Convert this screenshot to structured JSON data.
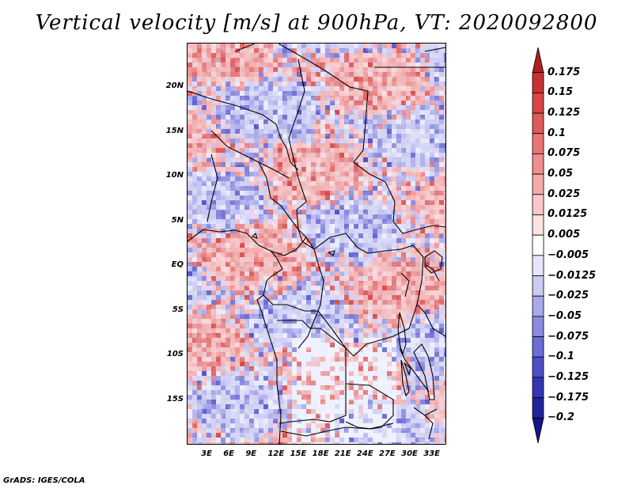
{
  "title": "Vertical velocity [m/s] at 900hPa, VT: 2020092800",
  "credit": "GrADS: IGES/COLA",
  "map": {
    "lon_range": [
      0,
      35
    ],
    "lat_range": [
      -20,
      25
    ],
    "lat_labels": [
      {
        "text": "20N",
        "lat": 20
      },
      {
        "text": "15N",
        "lat": 15
      },
      {
        "text": "10N",
        "lat": 10
      },
      {
        "text": "5N",
        "lat": 5
      },
      {
        "text": "EQ",
        "lat": 0
      },
      {
        "text": "5S",
        "lat": -5
      },
      {
        "text": "10S",
        "lat": -10
      },
      {
        "text": "15S",
        "lat": -15
      }
    ],
    "lon_labels": [
      {
        "text": "3E",
        "lon": 3
      },
      {
        "text": "6E",
        "lon": 6
      },
      {
        "text": "9E",
        "lon": 9
      },
      {
        "text": "12E",
        "lon": 12
      },
      {
        "text": "15E",
        "lon": 15
      },
      {
        "text": "18E",
        "lon": 18
      },
      {
        "text": "21E",
        "lon": 21
      },
      {
        "text": "24E",
        "lon": 24
      },
      {
        "text": "27E",
        "lon": 27
      },
      {
        "text": "30E",
        "lon": 30
      },
      {
        "text": "33E",
        "lon": 33
      }
    ]
  },
  "colorbar": {
    "labels": [
      "0.175",
      "0.15",
      "0.125",
      "0.1",
      "0.075",
      "0.05",
      "0.025",
      "0.0125",
      "0.005",
      "−0.005",
      "−0.0125",
      "−0.025",
      "−0.05",
      "−0.075",
      "−0.1",
      "−0.125",
      "−0.175",
      "−0.2"
    ],
    "colors": [
      "#b01e1e",
      "#c83232",
      "#d64646",
      "#e05a5a",
      "#e87474",
      "#ef8e8e",
      "#f4abab",
      "#f8c8c8",
      "#fbe3e3",
      "#ffffff",
      "#e6e6fa",
      "#cacaf2",
      "#a9a9ea",
      "#8a8ae0",
      "#6c6cd6",
      "#4e4ec8",
      "#3535b4",
      "#22229a",
      "#14148a"
    ]
  }
}
